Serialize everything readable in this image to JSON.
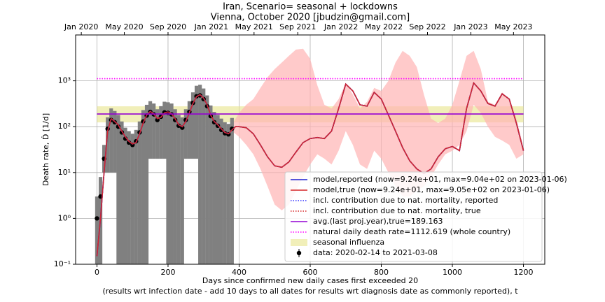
{
  "chart_data": {
    "type": "line",
    "title": "Iran, Scenario= seasonal + lockdowns",
    "subtitle": "Vienna, October 2020 [jbudzin@gmail.com]",
    "xlabel": "Days since confirmed new daily cases first exceeded 20",
    "xlabel2": "(results wrt infection date - add 10 days to all dates for results wrt diagnosis date as commonly reported), t",
    "ylabel": "Death rate, Ḋ [1/d]",
    "xlim": [
      -60,
      1260
    ],
    "ylim": [
      0.1,
      10000
    ],
    "log_y": true,
    "grid": true,
    "legend_loc": "lower right",
    "xticks": [
      0,
      200,
      400,
      600,
      800,
      1000,
      1200
    ],
    "yticks": [
      {
        "value": 0.1,
        "label": "10⁻¹"
      },
      {
        "value": 1,
        "label": "10⁰"
      },
      {
        "value": 10,
        "label": "10¹"
      },
      {
        "value": 100,
        "label": "10²"
      },
      {
        "value": 1000,
        "label": "10³"
      }
    ],
    "top_xticks": [
      {
        "value": -44,
        "label": "Jan 2020"
      },
      {
        "value": 77,
        "label": "May 2020"
      },
      {
        "value": 200,
        "label": "Sep 2020"
      },
      {
        "value": 322,
        "label": "Jan 2021"
      },
      {
        "value": 442,
        "label": "May 2021"
      },
      {
        "value": 565,
        "label": "Sep 2021"
      },
      {
        "value": 687,
        "label": "Jan 2022"
      },
      {
        "value": 807,
        "label": "May 2022"
      },
      {
        "value": 930,
        "label": "Sep 2022"
      },
      {
        "value": 1052,
        "label": "Jan 2023"
      },
      {
        "value": 1172,
        "label": "May 2023"
      }
    ],
    "x": [
      0,
      10,
      20,
      30,
      40,
      50,
      60,
      70,
      80,
      90,
      100,
      110,
      120,
      130,
      140,
      150,
      160,
      170,
      180,
      190,
      200,
      210,
      220,
      230,
      240,
      250,
      260,
      270,
      280,
      290,
      300,
      310,
      320,
      330,
      340,
      350,
      360,
      370,
      380,
      390,
      400,
      420,
      440,
      460,
      480,
      500,
      520,
      540,
      560,
      580,
      600,
      620,
      640,
      660,
      680,
      700,
      720,
      740,
      760,
      780,
      800,
      820,
      840,
      860,
      880,
      900,
      920,
      940,
      960,
      980,
      1000,
      1020,
      1040,
      1060,
      1080,
      1100,
      1120,
      1140,
      1160,
      1180,
      1200
    ],
    "series": [
      {
        "name": "model,reported (now=9.24e+01, max=9.04e+02 on 2023-01-06)",
        "color": "#1f1fd0",
        "style": "solid",
        "values": [
          0.15,
          1,
          10,
          80,
          150,
          130,
          110,
          80,
          60,
          48,
          42,
          45,
          70,
          120,
          180,
          215,
          190,
          150,
          160,
          200,
          210,
          190,
          150,
          110,
          100,
          130,
          200,
          320,
          450,
          500,
          420,
          300,
          180,
          130,
          110,
          90,
          75,
          70,
          85,
          100,
          100,
          95,
          70,
          40,
          22,
          14,
          13,
          17,
          28,
          45,
          55,
          58,
          55,
          80,
          250,
          850,
          600,
          300,
          280,
          560,
          400,
          180,
          80,
          35,
          18,
          12,
          9.5,
          12,
          22,
          33,
          37,
          30,
          250,
          900,
          600,
          320,
          280,
          520,
          400,
          120,
          30
        ]
      },
      {
        "name": "model,true (now=9.24e+01, max=9.05e+02 on 2023-01-06)",
        "color": "#d62728",
        "style": "solid",
        "values": [
          0.15,
          1,
          10,
          80,
          150,
          130,
          110,
          80,
          60,
          48,
          42,
          45,
          70,
          120,
          180,
          215,
          190,
          150,
          160,
          200,
          210,
          190,
          150,
          110,
          100,
          130,
          200,
          320,
          450,
          500,
          420,
          300,
          180,
          130,
          110,
          90,
          75,
          70,
          85,
          100,
          100,
          95,
          70,
          40,
          22,
          14,
          13,
          17,
          28,
          45,
          55,
          58,
          55,
          80,
          250,
          850,
          600,
          300,
          280,
          560,
          400,
          180,
          80,
          35,
          18,
          12,
          9.5,
          12,
          22,
          33,
          37,
          30,
          250,
          900,
          600,
          320,
          280,
          520,
          400,
          120,
          30
        ]
      },
      {
        "name": "incl. contribution due to nat. mortality, reported",
        "color": "#3030ff",
        "style": "dotted",
        "values": [
          0.15,
          1,
          10,
          80,
          150,
          130,
          110,
          80,
          60,
          48,
          42,
          45,
          70,
          120,
          180,
          215,
          190,
          150,
          160,
          200,
          210,
          190,
          150,
          110,
          100,
          130,
          200,
          320,
          450,
          500,
          420,
          300,
          180,
          130,
          110,
          90,
          75,
          70,
          85,
          100,
          100,
          95,
          70,
          40,
          22,
          14,
          13,
          17,
          28,
          45,
          55,
          58,
          55,
          80,
          250,
          850,
          600,
          300,
          280,
          560,
          400,
          180,
          80,
          35,
          18,
          12,
          9.5,
          12,
          22,
          33,
          37,
          30,
          250,
          900,
          600,
          320,
          280,
          520,
          400,
          120,
          30
        ]
      },
      {
        "name": "incl. contribution due to nat. mortality, true",
        "color": "#d62728",
        "style": "dotted",
        "values": [
          0.15,
          1,
          10,
          80,
          150,
          130,
          110,
          80,
          60,
          48,
          42,
          45,
          70,
          120,
          180,
          215,
          190,
          150,
          160,
          200,
          210,
          190,
          150,
          110,
          100,
          130,
          200,
          320,
          450,
          500,
          420,
          300,
          180,
          130,
          110,
          90,
          75,
          70,
          85,
          100,
          100,
          95,
          70,
          40,
          22,
          14,
          13,
          17,
          28,
          45,
          55,
          58,
          55,
          80,
          250,
          850,
          600,
          300,
          280,
          560,
          400,
          180,
          80,
          35,
          18,
          12,
          9.5,
          12,
          22,
          33,
          37,
          30,
          250,
          900,
          600,
          320,
          280,
          520,
          400,
          120,
          30
        ]
      },
      {
        "name": "avg.(last proj.year),true=189.163",
        "color": "#9400d3",
        "style": "solid",
        "value": 189.163,
        "x_range": [
          0,
          1200
        ]
      },
      {
        "name": "natural daily death rate=1112.619 (whole country)",
        "color": "#ff00ff",
        "style": "dotted",
        "value": 1112.619,
        "x_range": [
          0,
          1200
        ]
      }
    ],
    "influenza": {
      "name": "seasonal influenza",
      "color": "#e8e48a",
      "range": [
        124,
        278
      ],
      "x_range": [
        0,
        1200
      ]
    },
    "band": {
      "color": "#ffb3b3",
      "x": [
        380,
        400,
        420,
        440,
        460,
        480,
        500,
        520,
        540,
        560,
        580,
        600,
        620,
        640,
        660,
        680,
        700,
        720,
        740,
        760,
        780,
        800,
        820,
        840,
        860,
        880,
        900,
        920,
        940,
        960,
        980,
        1000,
        1020,
        1040,
        1060,
        1080,
        1100,
        1120,
        1140,
        1160,
        1180,
        1200
      ],
      "lower": [
        80,
        60,
        40,
        25,
        12,
        5,
        2,
        1.5,
        2,
        4,
        8,
        15,
        25,
        20,
        15,
        30,
        80,
        40,
        15,
        12,
        30,
        20,
        10,
        5,
        3,
        3,
        4,
        5,
        8,
        15,
        25,
        30,
        40,
        80,
        300,
        200,
        100,
        60,
        50,
        40,
        20,
        25
      ],
      "upper": [
        110,
        200,
        300,
        400,
        700,
        1200,
        1800,
        2500,
        3500,
        4800,
        5000,
        3000,
        800,
        300,
        250,
        400,
        900,
        500,
        250,
        350,
        700,
        600,
        1000,
        2500,
        4500,
        3500,
        2000,
        500,
        150,
        120,
        150,
        300,
        1000,
        3500,
        4500,
        1800,
        350,
        300,
        560,
        400,
        150,
        35
      ]
    },
    "data_points": {
      "name": "data: 2020-02-14 to 2021-03-08",
      "color": "#000000",
      "error_color": "#808080",
      "x": [
        0,
        10,
        20,
        30,
        40,
        50,
        60,
        70,
        80,
        90,
        100,
        110,
        120,
        130,
        140,
        150,
        160,
        170,
        180,
        190,
        200,
        210,
        220,
        230,
        240,
        250,
        260,
        270,
        280,
        290,
        300,
        310,
        320,
        330,
        340,
        350,
        360,
        370,
        380
      ],
      "values": [
        1,
        3,
        20,
        90,
        140,
        125,
        100,
        75,
        55,
        45,
        40,
        48,
        75,
        130,
        175,
        210,
        185,
        140,
        165,
        205,
        200,
        185,
        140,
        105,
        95,
        140,
        210,
        330,
        460,
        480,
        400,
        280,
        170,
        125,
        105,
        85,
        72,
        68,
        90
      ],
      "lower": [
        0.1,
        0.1,
        10,
        10,
        10,
        10,
        0.1,
        0.1,
        0.1,
        0.1,
        0.1,
        0.1,
        0.1,
        0.1,
        0.1,
        20,
        20,
        20,
        20,
        20,
        0.1,
        0.1,
        0.1,
        0.1,
        0.1,
        20,
        20,
        20,
        20,
        0.1,
        0.1,
        0.1,
        0.1,
        0.1,
        0.1,
        0.1,
        0.1,
        0.1,
        0.1
      ],
      "upper": [
        3,
        8,
        40,
        160,
        250,
        220,
        180,
        130,
        95,
        80,
        70,
        85,
        130,
        230,
        300,
        360,
        320,
        240,
        280,
        350,
        340,
        320,
        240,
        180,
        160,
        240,
        360,
        560,
        780,
        820,
        680,
        480,
        290,
        210,
        180,
        150,
        125,
        115,
        155
      ]
    }
  }
}
